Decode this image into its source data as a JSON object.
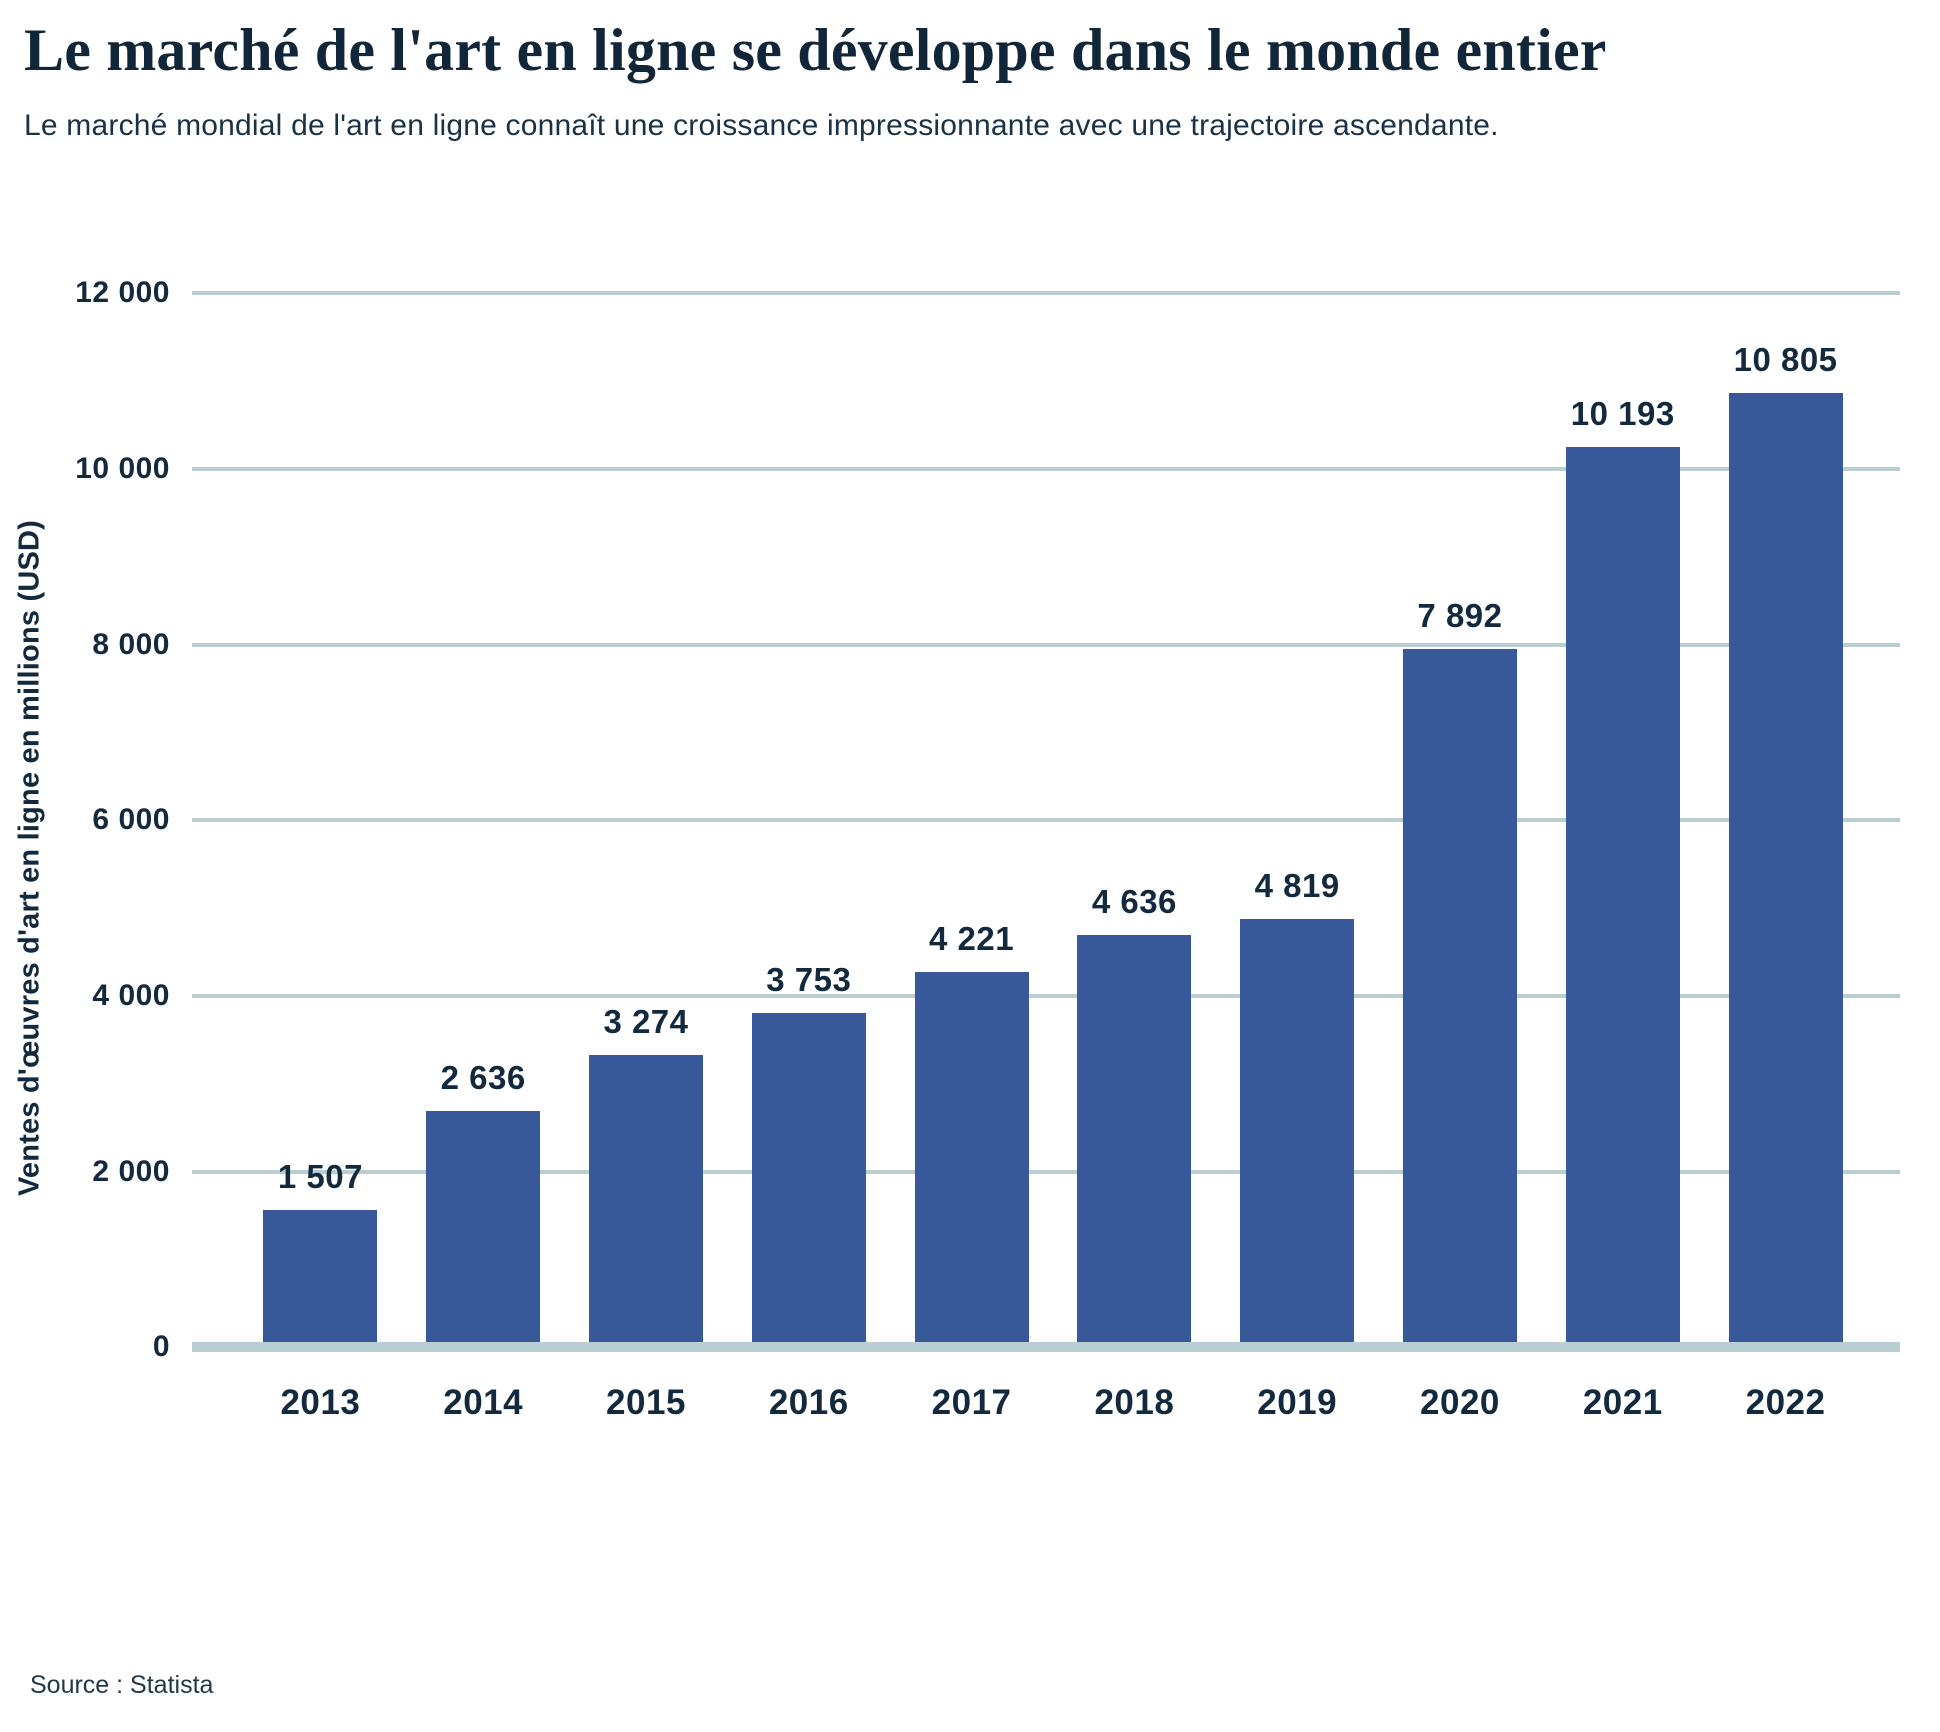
{
  "header": {
    "title": "Le marché de l'art en ligne se développe dans le monde entier",
    "subtitle": "Le marché mondial de l'art en ligne connaît une croissance impressionnante avec une trajectoire ascendante."
  },
  "chart_data": {
    "type": "bar",
    "title": "Le marché de l'art en ligne se développe dans le monde entier",
    "categories": [
      "2013",
      "2014",
      "2015",
      "2016",
      "2017",
      "2018",
      "2019",
      "2020",
      "2021",
      "2022"
    ],
    "values": [
      1507,
      2636,
      3274,
      3753,
      4221,
      4636,
      4819,
      7892,
      10193,
      10805
    ],
    "value_labels": [
      "1 507",
      "2 636",
      "3 274",
      "3 753",
      "4 221",
      "4 636",
      "4 819",
      "7 892",
      "10 193",
      "10 805"
    ],
    "xlabel": "",
    "ylabel": "Ventes d'œuvres d'art en ligne en millions (USD)",
    "ylim": [
      0,
      12000
    ],
    "yticks": [
      0,
      2000,
      4000,
      6000,
      8000,
      10000,
      12000
    ],
    "ytick_labels": [
      "0",
      "2 000",
      "4 000",
      "6 000",
      "8 000",
      "10 000",
      "12 000"
    ],
    "grid": true,
    "legend": "none",
    "bar_color": "#37599a",
    "gridline_color": "#b9ced3",
    "text_color": "#132a3e"
  },
  "footer": {
    "source": "Source : Statista"
  }
}
